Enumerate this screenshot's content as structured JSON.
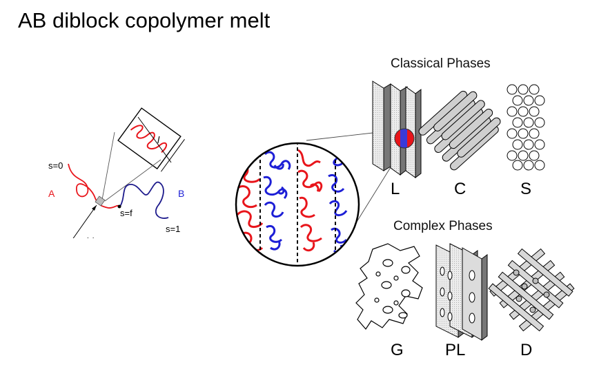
{
  "title": "AB diblock copolymer melt",
  "chain": {
    "s0": "s=0",
    "sf": "s=f",
    "s1": "s=1",
    "block_a": "A",
    "block_b": "B",
    "segment_length": "l",
    "position": "r (s)"
  },
  "classical": {
    "heading": "Classical Phases",
    "lamellar": "L",
    "cylinder": "C",
    "sphere": "S"
  },
  "complex": {
    "heading": "Complex Phases",
    "gyroid": "G",
    "perforated_lamellar": "PL",
    "double_diamond": "D"
  },
  "colors": {
    "block_a": "#e8151b",
    "block_b": "#1d1fd6",
    "chain_b": "#1d1a8c"
  }
}
